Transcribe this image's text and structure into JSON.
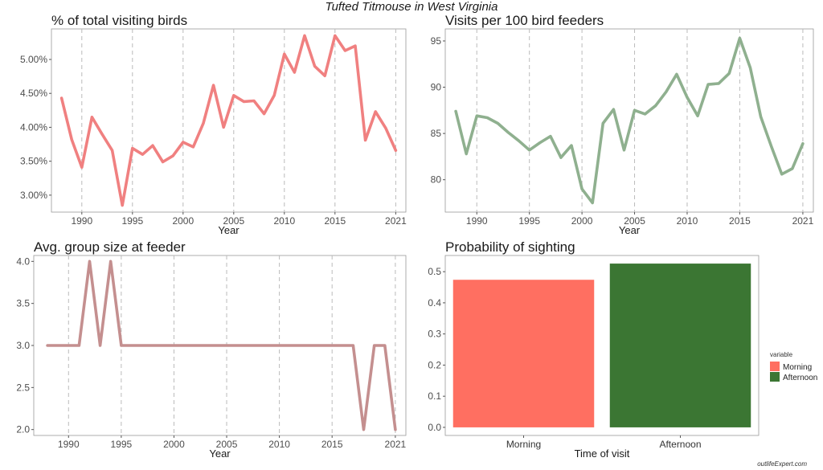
{
  "suptitle": "Tufted Titmouse in West Virginia",
  "watermark": "outlifeExpert.com",
  "colors": {
    "pct_line": "#f08080",
    "visits_line": "#8fb08f",
    "group_line": "#c48f8f",
    "morning": "#ff6f61",
    "afternoon": "#3b7633",
    "vgrid": "#bbbbbb",
    "axis_text": "#4d4d4d"
  },
  "chart_data": [
    {
      "id": "pct",
      "type": "line",
      "title": "% of total visiting birds",
      "xlabel": "Year",
      "ylabel": "",
      "xlim": [
        1987,
        2022
      ],
      "ylim": [
        2.75,
        5.45
      ],
      "xticks": [
        1990,
        1995,
        2000,
        2005,
        2010,
        2015,
        2021
      ],
      "yticks": [
        3.0,
        3.5,
        4.0,
        4.5,
        5.0
      ],
      "ytick_labels": [
        "3.00%",
        "3.50%",
        "4.00%",
        "4.50%",
        "5.00%"
      ],
      "grid": "vertical-dashed",
      "x": [
        1988,
        1989,
        1990,
        1991,
        1992,
        1993,
        1994,
        1995,
        1996,
        1997,
        1998,
        1999,
        2000,
        2001,
        2002,
        2003,
        2004,
        2005,
        2006,
        2007,
        2008,
        2009,
        2010,
        2011,
        2012,
        2013,
        2014,
        2015,
        2016,
        2017,
        2018,
        2019,
        2020,
        2021
      ],
      "series": [
        {
          "values": [
            4.43,
            3.82,
            3.41,
            4.15,
            3.9,
            3.66,
            2.85,
            3.69,
            3.6,
            3.73,
            3.49,
            3.58,
            3.78,
            3.71,
            4.06,
            4.62,
            4.0,
            4.47,
            4.38,
            4.39,
            4.2,
            4.47,
            5.08,
            4.81,
            5.35,
            4.9,
            4.76,
            5.35,
            5.13,
            5.2,
            3.81,
            4.23,
            3.99,
            3.66
          ]
        }
      ]
    },
    {
      "id": "visits",
      "type": "line",
      "title": "Visits per 100 bird feeders",
      "xlabel": "Year",
      "ylabel": "",
      "xlim": [
        1987,
        2022
      ],
      "ylim": [
        76.5,
        96.3
      ],
      "xticks": [
        1990,
        1995,
        2000,
        2005,
        2010,
        2015,
        2021
      ],
      "yticks": [
        80,
        85,
        90,
        95
      ],
      "ytick_labels": [
        "80",
        "85",
        "90",
        "95"
      ],
      "grid": "vertical-dashed",
      "x": [
        1988,
        1989,
        1990,
        1991,
        1992,
        1993,
        1994,
        1995,
        1996,
        1997,
        1998,
        1999,
        2000,
        2001,
        2002,
        2003,
        2004,
        2005,
        2006,
        2007,
        2008,
        2009,
        2010,
        2011,
        2012,
        2013,
        2014,
        2015,
        2016,
        2017,
        2018,
        2019,
        2020,
        2021
      ],
      "series": [
        {
          "values": [
            87.4,
            82.8,
            86.9,
            86.7,
            86.1,
            85.1,
            84.2,
            83.2,
            84.0,
            84.7,
            82.4,
            83.7,
            79.0,
            77.5,
            86.1,
            87.6,
            83.2,
            87.5,
            87.1,
            88.0,
            89.5,
            91.4,
            88.9,
            86.9,
            90.3,
            90.4,
            91.5,
            95.3,
            92.1,
            86.8,
            83.6,
            80.6,
            81.2,
            83.9
          ]
        }
      ]
    },
    {
      "id": "group",
      "type": "line",
      "title": "Avg. group size at feeder",
      "xlabel": "Year",
      "ylabel": "",
      "xlim": [
        1986.7,
        2022
      ],
      "ylim": [
        1.93,
        4.07
      ],
      "xticks": [
        1990,
        1995,
        2000,
        2005,
        2010,
        2015,
        2021
      ],
      "yticks": [
        2.0,
        2.5,
        3.0,
        3.5,
        4.0
      ],
      "ytick_labels": [
        "2.0",
        "2.5",
        "3.0",
        "3.5",
        "4.0"
      ],
      "grid": "vertical-dashed",
      "x": [
        1988,
        1989,
        1990,
        1991,
        1992,
        1993,
        1994,
        1995,
        1996,
        1997,
        1998,
        1999,
        2000,
        2001,
        2002,
        2003,
        2004,
        2005,
        2006,
        2007,
        2008,
        2009,
        2010,
        2011,
        2012,
        2013,
        2014,
        2015,
        2016,
        2017,
        2018,
        2019,
        2020,
        2021
      ],
      "series": [
        {
          "values": [
            3,
            3,
            3,
            3,
            4,
            3,
            4,
            3,
            3,
            3,
            3,
            3,
            3,
            3,
            3,
            3,
            3,
            3,
            3,
            3,
            3,
            3,
            3,
            3,
            3,
            3,
            3,
            3,
            3,
            3,
            2,
            3,
            3,
            2
          ]
        }
      ]
    },
    {
      "id": "prob",
      "type": "bar",
      "title": "Probability of sighting",
      "xlabel": "Time of visit",
      "ylabel": "",
      "categories": [
        "Morning",
        "Afternoon"
      ],
      "values": [
        0.474,
        0.526
      ],
      "ylim": [
        -0.026,
        0.552
      ],
      "yticks": [
        0.0,
        0.1,
        0.2,
        0.3,
        0.4,
        0.5
      ],
      "ytick_labels": [
        "0.0",
        "0.1",
        "0.2",
        "0.3",
        "0.4",
        "0.5"
      ],
      "grid": "none",
      "legend": {
        "title": "variable",
        "position": "right",
        "entries": [
          "Morning",
          "Afternoon"
        ]
      }
    }
  ]
}
